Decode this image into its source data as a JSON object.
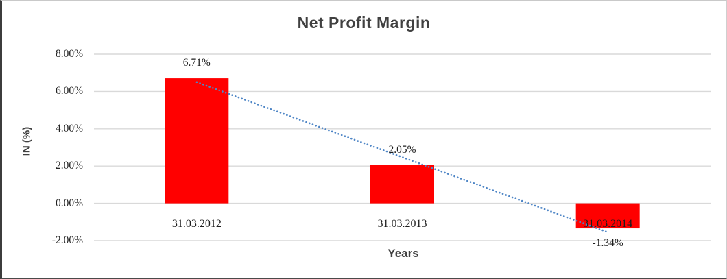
{
  "chart_data": {
    "type": "bar",
    "title": "Net Profit Margin",
    "categories": [
      "31.03.2012",
      "31.03.2013",
      "31.03.2014"
    ],
    "values": [
      6.71,
      2.05,
      -1.34
    ],
    "data_labels": [
      "6.71%",
      "2.05%",
      "-1.34%"
    ],
    "xlabel": "Years",
    "ylabel": "IN (%)",
    "ylim": [
      -2,
      8
    ],
    "yticks": [
      {
        "value": 8,
        "label": "8.00%"
      },
      {
        "value": 6,
        "label": "6.00%"
      },
      {
        "value": 4,
        "label": "4.00%"
      },
      {
        "value": 2,
        "label": "2.00%"
      },
      {
        "value": 0,
        "label": "0.00%"
      },
      {
        "value": -2,
        "label": "-2.00%"
      }
    ],
    "grid": true,
    "legend": "none",
    "colors": {
      "bar": "#FF0000",
      "gridline": "#D9D9D9",
      "trendline": "#4F86C6",
      "title_text": "#404040",
      "label_text": "#1D1D1D"
    },
    "trendline": {
      "type": "linear",
      "style": "dotted",
      "start_value": 6.5,
      "end_value": -1.55
    }
  }
}
